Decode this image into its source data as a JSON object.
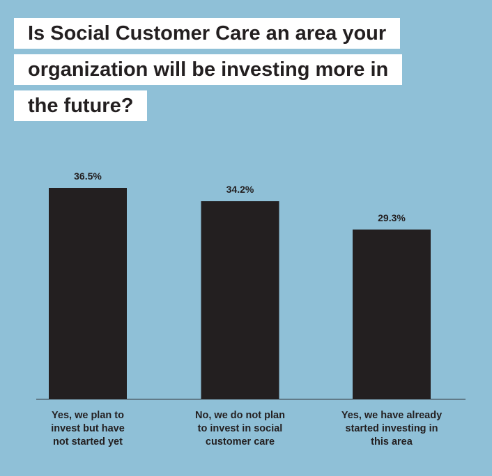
{
  "chart_data": {
    "type": "bar",
    "title": "Is Social Customer Care an area your organization will be investing more in the future?",
    "categories": [
      "Yes, we plan to\ninvest but have\nnot started yet",
      "No, we do not plan\nto invest in social\ncustomer care",
      "Yes, we have already\nstarted investing in\nthis area"
    ],
    "values": [
      36.5,
      34.2,
      29.3
    ],
    "value_labels": [
      "36.5%",
      "34.2%",
      "29.3%"
    ],
    "color": "#231f20"
  }
}
